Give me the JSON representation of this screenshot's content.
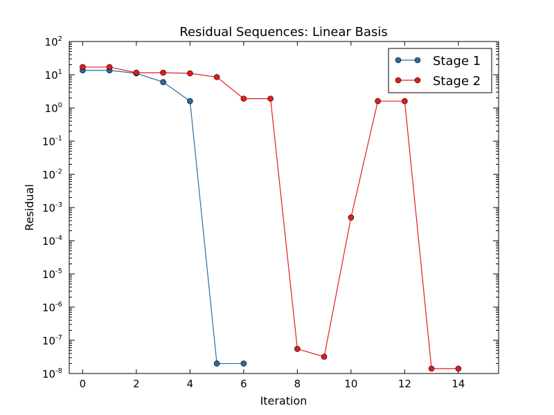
{
  "chart_data": {
    "type": "line",
    "title": "Residual Sequences: Linear Basis",
    "xlabel": "Iteration",
    "ylabel": "Residual",
    "xlim": [
      -0.5,
      15.5
    ],
    "ylim": [
      1e-08,
      100
    ],
    "yscale": "log",
    "grid": false,
    "legend_position": "top-right",
    "x_ticks": [
      0,
      2,
      4,
      6,
      8,
      10,
      12,
      14
    ],
    "y_ticks": [
      {
        "base": "10",
        "exp": "-8",
        "value": 1e-08
      },
      {
        "base": "10",
        "exp": "-7",
        "value": 1e-07
      },
      {
        "base": "10",
        "exp": "-6",
        "value": 1e-06
      },
      {
        "base": "10",
        "exp": "-5",
        "value": 1e-05
      },
      {
        "base": "10",
        "exp": "-4",
        "value": 0.0001
      },
      {
        "base": "10",
        "exp": "-3",
        "value": 0.001
      },
      {
        "base": "10",
        "exp": "-2",
        "value": 0.01
      },
      {
        "base": "10",
        "exp": "-1",
        "value": 0.1
      },
      {
        "base": "10",
        "exp": "0",
        "value": 1
      },
      {
        "base": "10",
        "exp": "1",
        "value": 10
      },
      {
        "base": "10",
        "exp": "2",
        "value": 100
      }
    ],
    "series": [
      {
        "name": "Stage 1",
        "color": "#2b6aa0",
        "x": [
          0,
          1,
          2,
          3,
          4,
          5,
          6
        ],
        "values": [
          13.5,
          13.5,
          11.0,
          6.0,
          1.6,
          2e-08,
          2e-08
        ]
      },
      {
        "name": "Stage 2",
        "color": "#e31a1c",
        "x": [
          0,
          1,
          2,
          3,
          4,
          5,
          6,
          7,
          8,
          9,
          10,
          11,
          12,
          13,
          14
        ],
        "values": [
          17.0,
          17.0,
          11.5,
          11.5,
          11.0,
          8.5,
          1.9,
          1.9,
          5.5e-08,
          3.2e-08,
          0.0005,
          1.6,
          1.6,
          1.4e-08,
          1.4e-08
        ]
      }
    ]
  }
}
